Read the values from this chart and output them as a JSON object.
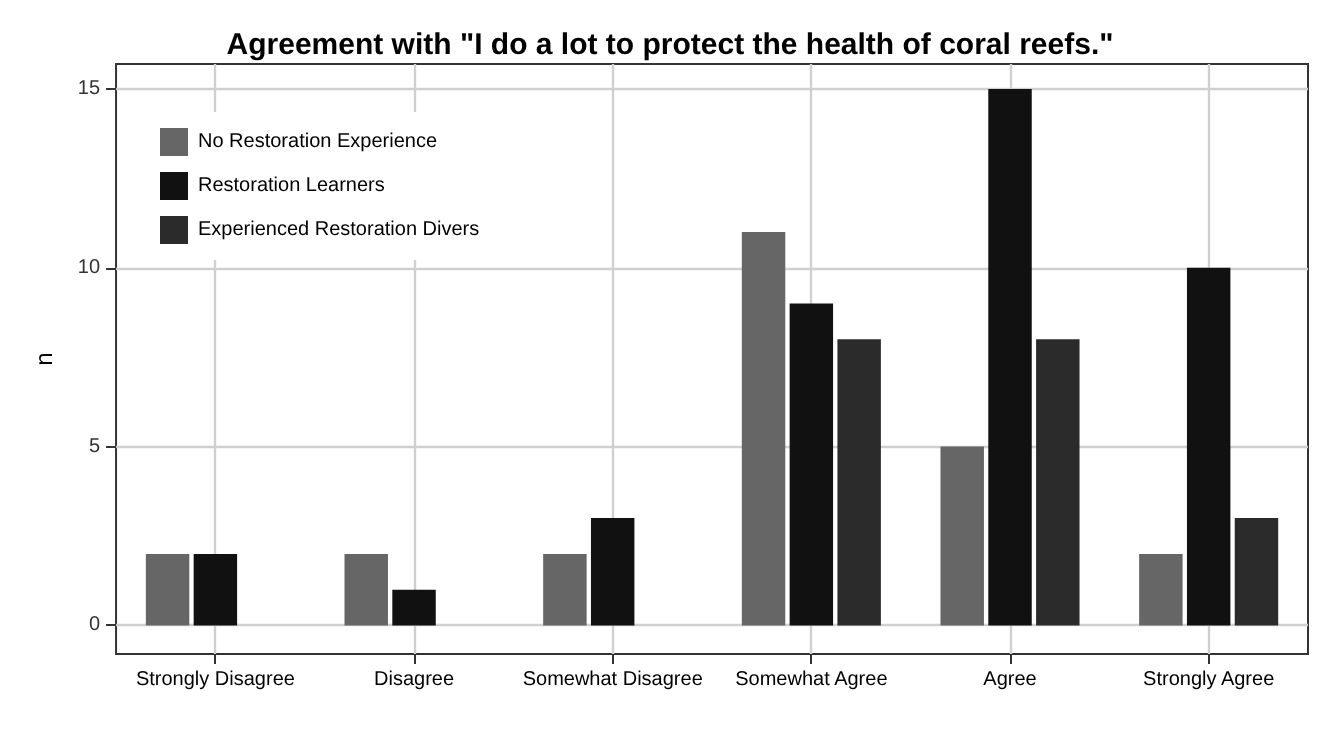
{
  "chart_data": {
    "type": "bar",
    "title": "Agreement with \"I do a lot to protect the health of coral reefs.\"",
    "ylabel": "n",
    "categories": [
      "Strongly Disagree",
      "Disagree",
      "Somewhat Disagree",
      "Somewhat Agree",
      "Agree",
      "Strongly Agree"
    ],
    "series": [
      {
        "name": "No Restoration Experience",
        "color": "#666666",
        "values": [
          2,
          2,
          2,
          11,
          5,
          2
        ]
      },
      {
        "name": "Restoration Learners",
        "color": "#111111",
        "values": [
          2,
          1,
          3,
          9,
          15,
          10
        ]
      },
      {
        "name": "Experienced Restoration Divers",
        "color": "#2b2b2b",
        "values": [
          null,
          null,
          null,
          8,
          8,
          3
        ]
      }
    ],
    "ylim": [
      -0.8,
      15.7
    ],
    "yticks": [
      0,
      5,
      10,
      15
    ],
    "grid": true,
    "legend": "top left"
  }
}
